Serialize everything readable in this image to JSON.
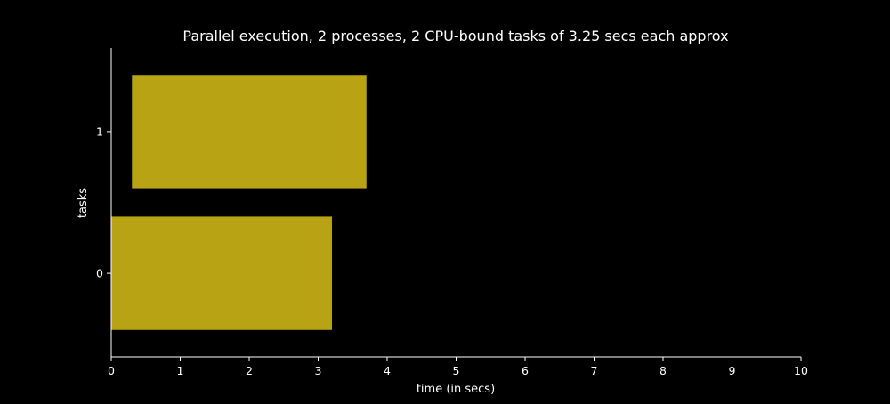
{
  "chart_data": {
    "type": "bar",
    "orientation": "horizontal",
    "title": "Parallel execution, 2 processes, 2 CPU-bound tasks of 3.25 secs each approx",
    "xlabel": "time (in secs)",
    "ylabel": "tasks",
    "xlim": [
      0,
      10
    ],
    "x_ticks": [
      "0",
      "1",
      "2",
      "3",
      "4",
      "5",
      "6",
      "7",
      "8",
      "9",
      "10"
    ],
    "categories": [
      "0",
      "1"
    ],
    "bars": [
      {
        "task": "0",
        "start": 0.0,
        "end": 3.2
      },
      {
        "task": "1",
        "start": 0.3,
        "end": 3.7
      }
    ],
    "bar_color": "#b8a315",
    "background_color": "#000000",
    "text_color": "#ffffff",
    "grid": false,
    "legend": "none"
  }
}
